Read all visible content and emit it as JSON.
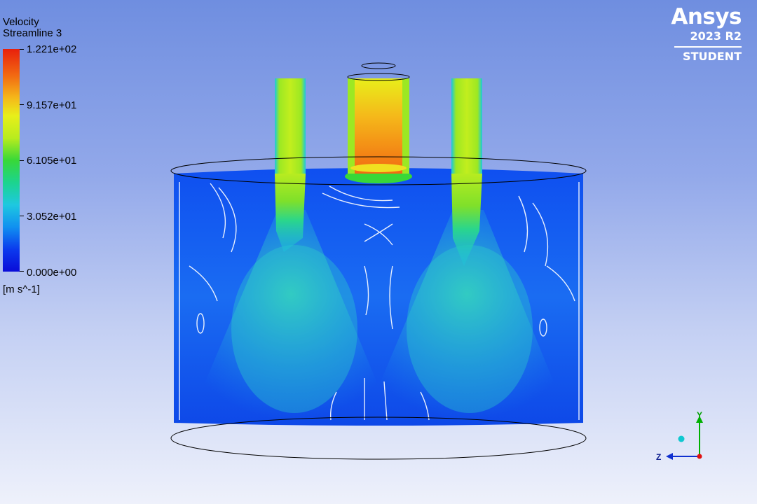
{
  "legend": {
    "title": "Velocity",
    "subtitle": "Streamline 3",
    "ticks": [
      "1.221e+02",
      "9.157e+01",
      "6.105e+01",
      "3.052e+01",
      "0.000e+00"
    ],
    "units": "[m s^-1]"
  },
  "brand": {
    "name": "Ansys",
    "version": "2023 R2",
    "edition": "STUDENT"
  },
  "triad": {
    "y_label": "Y",
    "z_label": "Z"
  },
  "colors": {
    "max": "#e8200c",
    "mid": "#38d838",
    "min": "#0a0cd8"
  }
}
